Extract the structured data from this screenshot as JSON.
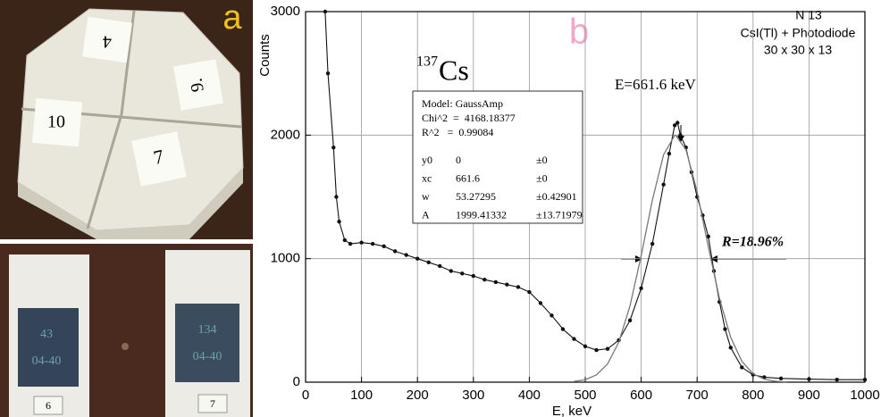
{
  "photos": {
    "label": "a",
    "top_labels": [
      "4",
      "9.",
      "10",
      "7"
    ],
    "chip_labels": [
      "43",
      "04-40",
      "134",
      "04-40"
    ],
    "bottom_labels": [
      "6",
      "7"
    ]
  },
  "chart_data": {
    "type": "line",
    "panel_label": "b",
    "x_label": "E, keV",
    "y_label": "Counts",
    "isotope_mass": "137",
    "isotope_symbol": "Cs",
    "peak_label": "E=661.6 keV",
    "resolution_label": "R=18.96%",
    "info": [
      "N 13",
      "CsI(Tl) + Photodiode",
      "30 x 30 x 13"
    ],
    "fit_box": {
      "header": [
        "Model: GaussAmp",
        "Chi^2  =  4168.18377",
        "R^2   =  0.99084"
      ],
      "params": [
        [
          "y0",
          "0",
          "±0"
        ],
        [
          "xc",
          "661.6",
          "±0"
        ],
        [
          "w",
          "53.27295",
          "±0.42901"
        ],
        [
          "A",
          "1999.41332",
          "±13.71979"
        ]
      ]
    },
    "xlim": [
      0,
      1000
    ],
    "ylim": [
      0,
      3000
    ],
    "xticks": [
      0,
      100,
      200,
      300,
      400,
      500,
      600,
      700,
      800,
      900,
      1000
    ],
    "yticks": [
      0,
      1000,
      2000,
      3000
    ],
    "grid": true,
    "series": [
      {
        "color": "#111111",
        "markers": true,
        "x": [
          35,
          40,
          50,
          55,
          60,
          70,
          80,
          100,
          120,
          140,
          160,
          180,
          200,
          220,
          240,
          260,
          280,
          300,
          320,
          340,
          360,
          380,
          400,
          420,
          440,
          460,
          480,
          500,
          520,
          540,
          560,
          580,
          600,
          620,
          640,
          650,
          660,
          665,
          670,
          680,
          690,
          700,
          710,
          720,
          730,
          740,
          750,
          760,
          780,
          800,
          820,
          850,
          900,
          950,
          1000
        ],
        "values": [
          3000,
          2500,
          1900,
          1500,
          1300,
          1150,
          1120,
          1130,
          1120,
          1100,
          1060,
          1030,
          1000,
          970,
          940,
          900,
          880,
          860,
          830,
          810,
          790,
          770,
          730,
          640,
          540,
          430,
          350,
          290,
          260,
          270,
          340,
          500,
          760,
          1120,
          1600,
          1850,
          2080,
          2100,
          2000,
          1900,
          1700,
          1500,
          1350,
          1180,
          900,
          650,
          430,
          280,
          120,
          60,
          40,
          30,
          25,
          20,
          20
        ]
      },
      {
        "color": "#777777",
        "markers": false,
        "x": [
          480,
          500,
          520,
          540,
          560,
          580,
          600,
          620,
          640,
          660,
          661.6,
          680,
          700,
          720,
          740,
          760,
          780,
          800,
          820,
          840,
          860
        ],
        "values": [
          6,
          20,
          59,
          148,
          324,
          618,
          1024,
          1474,
          1841,
          1999,
          1999,
          1883,
          1541,
          1096,
          677,
          363,
          169,
          68,
          24,
          7,
          2
        ]
      }
    ]
  }
}
